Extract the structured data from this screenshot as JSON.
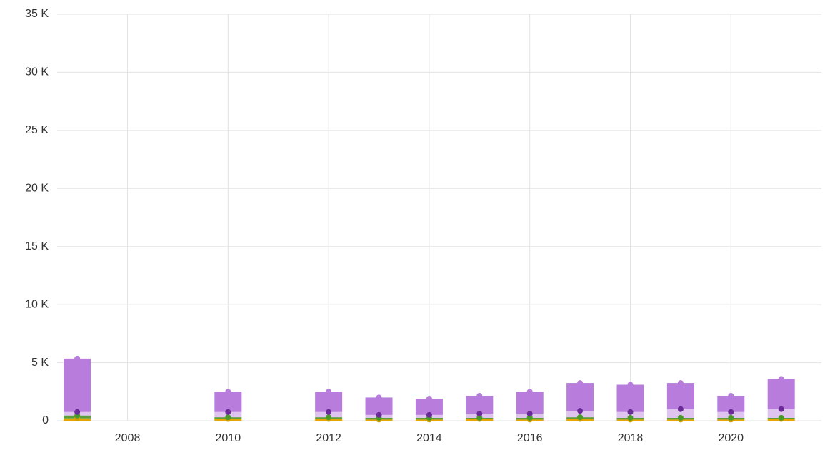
{
  "chart_data": {
    "type": "bar",
    "stacked": true,
    "x": [
      2007,
      2010,
      2012,
      2013,
      2014,
      2015,
      2016,
      2017,
      2018,
      2019,
      2020,
      2021
    ],
    "series": [
      {
        "color": "#e8a400",
        "dot_color": "#d4a000",
        "values": [
          200,
          150,
          150,
          100,
          100,
          150,
          100,
          150,
          100,
          100,
          100,
          150
        ]
      },
      {
        "color": "#5c9e3c",
        "dot_color": "#4a9a2a",
        "values": [
          250,
          150,
          150,
          150,
          150,
          100,
          150,
          150,
          150,
          150,
          150,
          100
        ]
      },
      {
        "color": "#dec4ee",
        "dot_color": "#6a2a98",
        "values": [
          300,
          450,
          450,
          250,
          250,
          350,
          350,
          550,
          500,
          750,
          500,
          750
        ]
      },
      {
        "color": "#b87ddc",
        "dot_color": "#b87ddc",
        "values": [
          4600,
          1750,
          1750,
          1500,
          1400,
          1550,
          1900,
          2400,
          2350,
          2250,
          1400,
          2600
        ]
      }
    ],
    "xlim": [
      2006.6,
      2021.8
    ],
    "xticks": [
      2008,
      2010,
      2012,
      2014,
      2016,
      2018,
      2020
    ],
    "ylim": [
      0,
      35000
    ],
    "yticks": [
      {
        "value": 0,
        "label": "0"
      },
      {
        "value": 5000,
        "label": "5 K"
      },
      {
        "value": 10000,
        "label": "10 K"
      },
      {
        "value": 15000,
        "label": "15 K"
      },
      {
        "value": 20000,
        "label": "20 K"
      },
      {
        "value": 25000,
        "label": "25 K"
      },
      {
        "value": 30000,
        "label": "30 K"
      },
      {
        "value": 35000,
        "label": "35 K"
      }
    ],
    "grid": true
  }
}
